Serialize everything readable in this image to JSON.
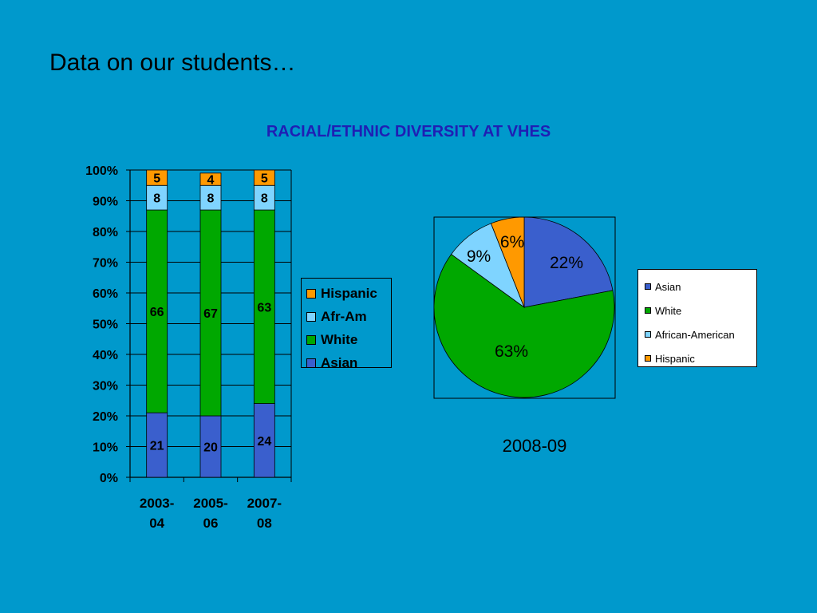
{
  "slide": {
    "title": "Data on our students…"
  },
  "colors": {
    "background": "#0099cc",
    "Asian": "#3a5fcd",
    "White": "#00a800",
    "AfrAm": "#7fd4ff",
    "Hispanic": "#ff9900"
  },
  "chart_data": [
    {
      "type": "bar",
      "stacked": true,
      "title": "RACIAL/ETHNIC DIVERSITY AT VHES",
      "categories": [
        "2003-04",
        "2005-06",
        "2007-08"
      ],
      "category_lines": [
        [
          "2003-",
          "04"
        ],
        [
          "2005-",
          "06"
        ],
        [
          "2007-",
          "08"
        ]
      ],
      "series": [
        {
          "name": "Asian",
          "values": [
            21,
            20,
            24
          ],
          "color": "#3a5fcd"
        },
        {
          "name": "White",
          "values": [
            66,
            67,
            63
          ],
          "color": "#00a800"
        },
        {
          "name": "Afr-Am",
          "values": [
            8,
            8,
            8
          ],
          "color": "#7fd4ff"
        },
        {
          "name": "Hispanic",
          "values": [
            5,
            4,
            5
          ],
          "color": "#ff9900"
        }
      ],
      "ylim": [
        0,
        100
      ],
      "yticks": [
        "0%",
        "10%",
        "20%",
        "30%",
        "40%",
        "50%",
        "60%",
        "70%",
        "80%",
        "90%",
        "100%"
      ],
      "grid": true,
      "legend": "right",
      "legend_order": [
        "Hispanic",
        "Afr-Am",
        "White",
        "Asian"
      ]
    },
    {
      "type": "pie",
      "caption": "2008-09",
      "slices": [
        {
          "name": "Asian",
          "value": 22,
          "label": "22%",
          "color": "#3a5fcd"
        },
        {
          "name": "White",
          "value": 63,
          "label": "63%",
          "color": "#00a800"
        },
        {
          "name": "African-American",
          "value": 9,
          "label": "9%",
          "color": "#7fd4ff"
        },
        {
          "name": "Hispanic",
          "value": 6,
          "label": "6%",
          "color": "#ff9900"
        }
      ],
      "legend": "right"
    }
  ]
}
